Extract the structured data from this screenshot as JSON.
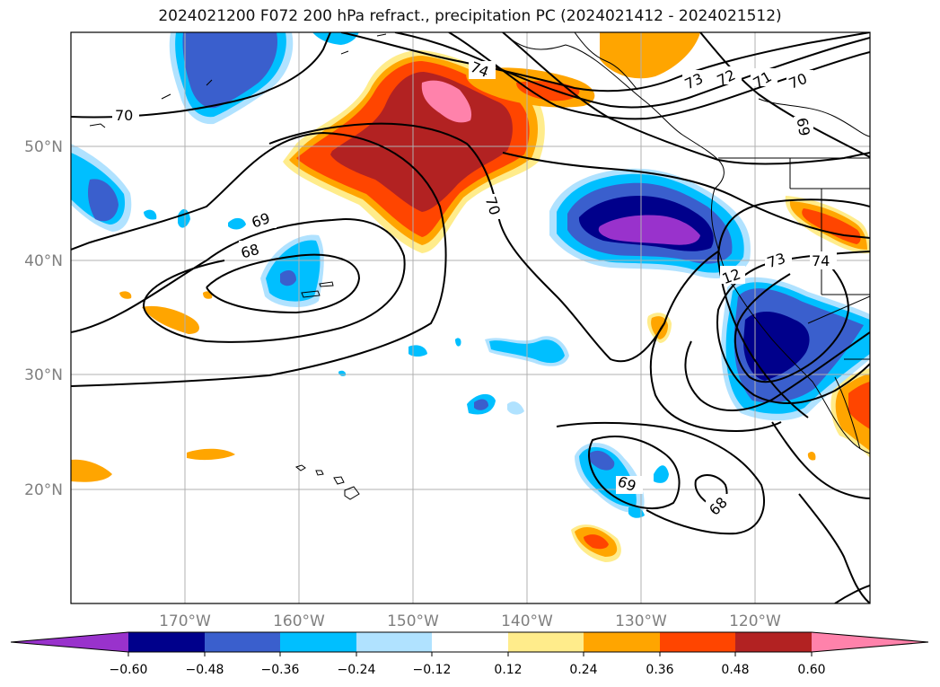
{
  "title": "2024021200 F072 200 hPa refract., precipitation PC (2024021412 - 2024021512)",
  "map": {
    "lon_labels": [
      "170°W",
      "160°W",
      "150°W",
      "140°W",
      "130°W",
      "120°W"
    ],
    "lat_labels": [
      "50°N",
      "40°N",
      "30°N",
      "20°N"
    ],
    "contour_labels": [
      "70",
      "74",
      "73",
      "72",
      "71",
      "70",
      "69",
      "69",
      "68",
      "70",
      "12",
      "73",
      "74",
      "69",
      "68"
    ],
    "lon_range": [
      -180,
      -110
    ],
    "lat_range": [
      10,
      60
    ]
  },
  "colorbar": {
    "ticks": [
      "−0.60",
      "−0.48",
      "−0.36",
      "−0.24",
      "−0.12",
      "0.12",
      "0.24",
      "0.36",
      "0.48",
      "0.60"
    ],
    "colors": [
      "#9932cc",
      "#00008b",
      "#3a5fcd",
      "#00bfff",
      "#b0e2ff",
      "#ffffff",
      "#ffec8b",
      "#ffa500",
      "#ff4500",
      "#b22222",
      "#ff82ab"
    ]
  }
}
